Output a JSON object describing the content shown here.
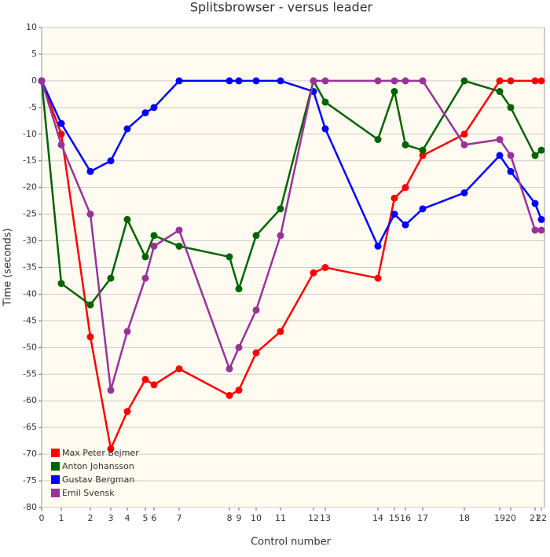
{
  "chart_data": {
    "type": "line",
    "title": "Splitsbrowser - versus leader",
    "x_label": "Control number",
    "y_label": "Time (seconds)",
    "x": [
      0,
      25,
      62,
      88,
      109,
      132,
      143,
      175,
      239,
      251,
      273,
      304,
      346,
      361,
      428,
      449,
      463,
      485,
      538,
      583,
      597,
      628,
      636
    ],
    "xlim": [
      0,
      640
    ],
    "xticks": [
      {
        "value": 0,
        "label": "0"
      },
      {
        "value": 25,
        "label": "1"
      },
      {
        "value": 62,
        "label": "2"
      },
      {
        "value": 88,
        "label": "3"
      },
      {
        "value": 109,
        "label": "4"
      },
      {
        "value": 132,
        "label": "5"
      },
      {
        "value": 143,
        "label": "6"
      },
      {
        "value": 175,
        "label": "7"
      },
      {
        "value": 239,
        "label": "8"
      },
      {
        "value": 251,
        "label": "9"
      },
      {
        "value": 273,
        "label": "10"
      },
      {
        "value": 304,
        "label": "11"
      },
      {
        "value": 346,
        "label": "12"
      },
      {
        "value": 361,
        "label": "13"
      },
      {
        "value": 428,
        "label": "14"
      },
      {
        "value": 449,
        "label": "15"
      },
      {
        "value": 463,
        "label": "16"
      },
      {
        "value": 485,
        "label": "17"
      },
      {
        "value": 538,
        "label": "18"
      },
      {
        "value": 583,
        "label": "19"
      },
      {
        "value": 597,
        "label": "20"
      },
      {
        "value": 628,
        "label": "21"
      },
      {
        "value": 636,
        "label": "22"
      }
    ],
    "ylim": [
      -80,
      10
    ],
    "yticks": [
      10,
      5,
      0,
      -5,
      -10,
      -15,
      -20,
      -25,
      -30,
      -35,
      -40,
      -45,
      -50,
      -55,
      -60,
      -65,
      -70,
      -75,
      -80
    ],
    "grid": true,
    "legend": "lower left",
    "series": [
      {
        "name": "Max Peter Bejmer",
        "color": "#ff0000",
        "values": [
          0,
          -10,
          -48,
          -69,
          -62,
          -56,
          -57,
          -54,
          -59,
          -58,
          -51,
          -47,
          -36,
          -35,
          -37,
          -22,
          -20,
          -14,
          -10,
          0,
          0,
          0,
          0
        ]
      },
      {
        "name": "Anton Johansson",
        "color": "#006400",
        "values": [
          0,
          -38,
          -42,
          -37,
          -26,
          -33,
          -29,
          -31,
          -33,
          -39,
          -29,
          -24,
          0,
          -4,
          -11,
          -2,
          -12,
          -13,
          0,
          -2,
          -5,
          -14,
          -13
        ]
      },
      {
        "name": "Gustav Bergman",
        "color": "#0000ff",
        "values": [
          0,
          -8,
          -17,
          -15,
          -9,
          -6,
          -5,
          0,
          0,
          0,
          0,
          0,
          -2,
          -9,
          -31,
          -25,
          -27,
          -24,
          -21,
          -14,
          -17,
          -23,
          -26
        ]
      },
      {
        "name": "Emil Svensk",
        "color": "#993399",
        "values": [
          0,
          -12,
          -25,
          -58,
          -47,
          -37,
          -31,
          -28,
          -54,
          -50,
          -43,
          -29,
          0,
          0,
          0,
          0,
          0,
          0,
          -12,
          -11,
          -14,
          -28,
          -28
        ]
      }
    ]
  }
}
